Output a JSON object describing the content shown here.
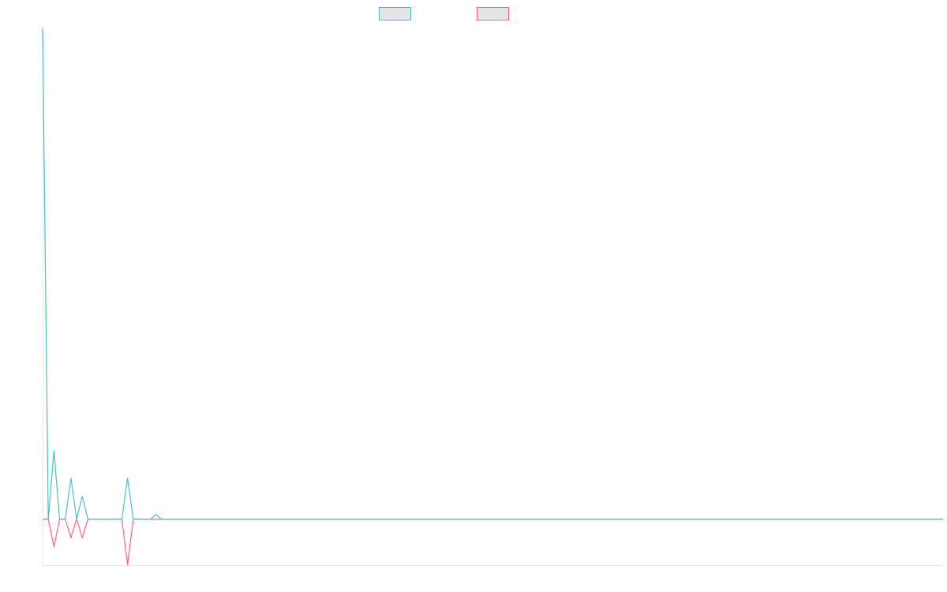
{
  "colors": {
    "series_1": "#4bc0c0",
    "series_2": "#ff6384",
    "legend_fill": "#e5e5e5",
    "axis": "#e6e6e6"
  },
  "chart_data": {
    "type": "line",
    "title": "",
    "xlabel": "",
    "ylabel": "",
    "grid": false,
    "legend": "top-center",
    "x": [
      0,
      1,
      2,
      3,
      4,
      5,
      6,
      7,
      8,
      9,
      10,
      11,
      12,
      13,
      14,
      15,
      16,
      17,
      18,
      19,
      20,
      21,
      22,
      23,
      24,
      25,
      26,
      27,
      28,
      29,
      30,
      31,
      32,
      33,
      34,
      35,
      36,
      37,
      38,
      39,
      40,
      41,
      42,
      43,
      44,
      45,
      46,
      47,
      48,
      49,
      50,
      51,
      52,
      53,
      54,
      55,
      56,
      57,
      58,
      59,
      60,
      61,
      62,
      63,
      64,
      65,
      66,
      67,
      68,
      69,
      70,
      71,
      72,
      73,
      74,
      75,
      76,
      77,
      78,
      79,
      80,
      81,
      82,
      83,
      84,
      85,
      86,
      87,
      88,
      89,
      90,
      91,
      92,
      93,
      94,
      95,
      96,
      97,
      98,
      99,
      100,
      101,
      102,
      103,
      104,
      105,
      106,
      107,
      108,
      109,
      110,
      111,
      112,
      113,
      114,
      115,
      116,
      117,
      118,
      119,
      120,
      121,
      122,
      123,
      124,
      125,
      126,
      127,
      128,
      129,
      130,
      131,
      132,
      133,
      134,
      135,
      136,
      137,
      138,
      139,
      140,
      141,
      142,
      143,
      144,
      145,
      146,
      147,
      148,
      149,
      150,
      151,
      152,
      153,
      154,
      155,
      156,
      157,
      158,
      159
    ],
    "xlim": [
      0,
      159
    ],
    "ylim": [
      -10,
      107
    ],
    "series": [
      {
        "values": [
          107,
          0,
          15,
          0,
          0,
          9,
          0,
          5,
          0,
          0,
          0,
          0,
          0,
          0,
          0,
          9,
          0,
          0,
          0,
          0,
          1,
          0,
          0,
          0,
          0,
          0,
          0,
          0,
          0,
          0,
          0,
          0,
          0,
          0,
          0,
          0,
          0,
          0,
          0,
          0,
          0,
          0,
          0,
          0,
          0,
          0,
          0,
          0,
          0,
          0,
          0,
          0,
          0,
          0,
          0,
          0,
          0,
          0,
          0,
          0,
          0,
          0,
          0,
          0,
          0,
          0,
          0,
          0,
          0,
          0,
          0,
          0,
          0,
          0,
          0,
          0,
          0,
          0,
          0,
          0,
          0,
          0,
          0,
          0,
          0,
          0,
          0,
          0,
          0,
          0,
          0,
          0,
          0,
          0,
          0,
          0,
          0,
          0,
          0,
          0,
          0,
          0,
          0,
          0,
          0,
          0,
          0,
          0,
          0,
          0,
          0,
          0,
          0,
          0,
          0,
          0,
          0,
          0,
          0,
          0,
          0,
          0,
          0,
          0,
          0,
          0,
          0,
          0,
          0,
          0,
          0,
          0,
          0,
          0,
          0,
          0,
          0,
          0,
          0,
          0,
          0,
          0,
          0,
          0,
          0,
          0,
          0,
          0,
          0,
          0,
          0,
          0,
          0,
          0,
          0,
          0,
          0,
          0,
          0,
          0
        ]
      },
      {
        "values": [
          0,
          0,
          -6,
          0,
          0,
          -4,
          0,
          -4,
          0,
          0,
          0,
          0,
          0,
          0,
          0,
          -10,
          0,
          0,
          0,
          0,
          0,
          0,
          0,
          0,
          0,
          0,
          0,
          0,
          0,
          0,
          0,
          0,
          0,
          0,
          0,
          0,
          0,
          0,
          0,
          0,
          0,
          0,
          0,
          0,
          0,
          0,
          0,
          0,
          0,
          0,
          0,
          0,
          0,
          0,
          0,
          0,
          0,
          0,
          0,
          0,
          0,
          0,
          0,
          0,
          0,
          0,
          0,
          0,
          0,
          0,
          0,
          0,
          0,
          0,
          0,
          0,
          0,
          0,
          0,
          0,
          0,
          0,
          0,
          0,
          0,
          0,
          0,
          0,
          0,
          0,
          0,
          0,
          0,
          0,
          0,
          0,
          0,
          0,
          0,
          0,
          0,
          0,
          0,
          0,
          0,
          0,
          0,
          0,
          0,
          0,
          0,
          0,
          0,
          0,
          0,
          0,
          0,
          0,
          0,
          0,
          0,
          0,
          0,
          0,
          0,
          0,
          0,
          0,
          0,
          0,
          0,
          0,
          0,
          0,
          0,
          0,
          0,
          0,
          0,
          0,
          0,
          0,
          0,
          0,
          0,
          0,
          0,
          0,
          0,
          0,
          0,
          0,
          0,
          0,
          0,
          0,
          0,
          0,
          0,
          0
        ]
      }
    ]
  }
}
